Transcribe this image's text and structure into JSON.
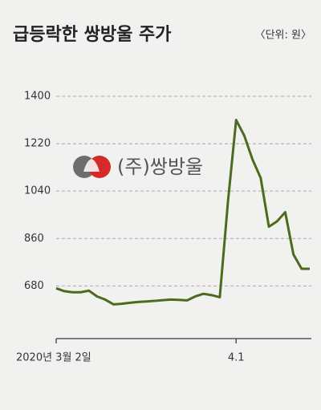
{
  "chart_data": {
    "type": "line",
    "title": "급등락한 쌍방울 주가",
    "unit_label": "〈단위: 원〉",
    "logo_text": "(주)쌍방울",
    "categories": [
      "2020년 3월 2일",
      null,
      null,
      null,
      null,
      null,
      null,
      null,
      null,
      null,
      null,
      null,
      null,
      null,
      null,
      null,
      null,
      null,
      null,
      null,
      null,
      null,
      "4.1",
      null,
      null,
      null,
      null,
      null,
      null,
      null,
      null,
      null
    ],
    "series": [
      {
        "name": "쌍방울",
        "color": "#4d6b1e",
        "values": [
          671,
          660,
          656,
          656,
          662,
          640,
          628,
          610,
          612,
          616,
          619,
          621,
          623,
          626,
          628,
          627,
          625,
          640,
          650,
          645,
          637,
          1000,
          1310,
          1250,
          1160,
          1090,
          905,
          925,
          960,
          800,
          745,
          745
        ]
      }
    ],
    "ylim": [
      480,
      1400
    ],
    "yticks": [
      680,
      860,
      1040,
      1220,
      1400
    ],
    "grid": true
  }
}
